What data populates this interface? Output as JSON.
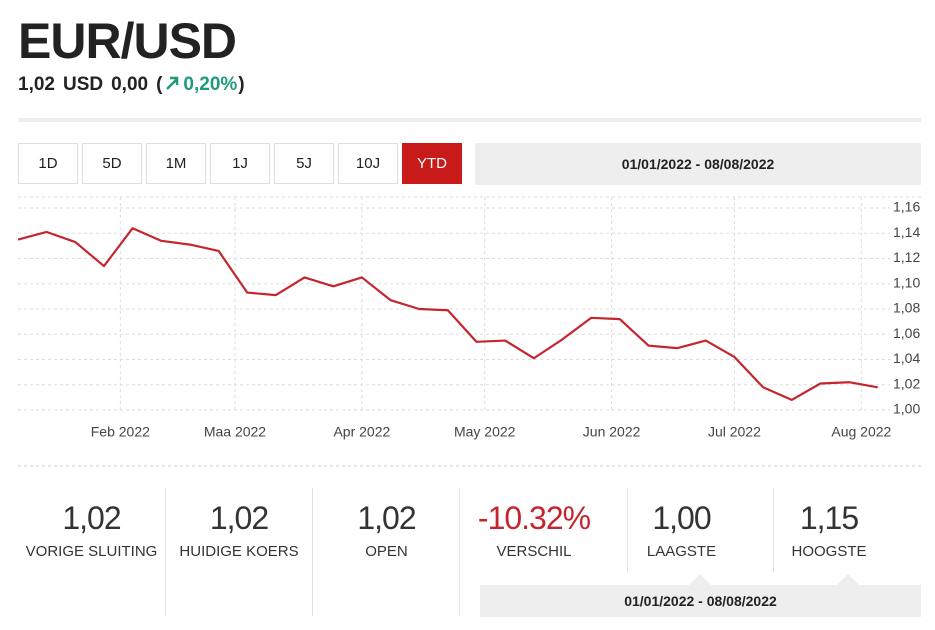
{
  "header": {
    "title": "EUR/USD",
    "price": "1,02",
    "currency": "USD",
    "change": "0,00",
    "paren_open": "(",
    "change_pct": "0,20%",
    "paren_close": ")"
  },
  "tabs": [
    "1D",
    "5D",
    "1M",
    "1J",
    "5J",
    "10J",
    "YTD"
  ],
  "active_tab": 6,
  "date_range": "01/01/2022 - 08/08/2022",
  "chart_data": {
    "type": "line",
    "color": "#c4262e",
    "grid": true,
    "x": [
      6,
      13,
      20,
      27,
      34,
      41,
      48,
      55,
      62,
      69,
      76,
      83,
      90,
      97,
      104,
      111,
      118,
      125,
      132,
      139,
      146,
      153,
      160,
      167,
      174,
      181,
      188,
      195,
      202,
      209,
      216
    ],
    "values": [
      1.135,
      1.141,
      1.133,
      1.114,
      1.144,
      1.134,
      1.131,
      1.126,
      1.093,
      1.091,
      1.105,
      1.098,
      1.105,
      1.087,
      1.08,
      1.079,
      1.054,
      1.055,
      1.041,
      1.056,
      1.073,
      1.072,
      1.051,
      1.049,
      1.055,
      1.042,
      1.018,
      1.008,
      1.021,
      1.022,
      1.018
    ],
    "xlim": [
      6,
      219
    ],
    "ylim": [
      1.0,
      1.16
    ],
    "xticks": [
      {
        "value": 31,
        "label": "Feb 2022"
      },
      {
        "value": 59,
        "label": "Maa 2022"
      },
      {
        "value": 90,
        "label": "Apr 2022"
      },
      {
        "value": 120,
        "label": "May 2022"
      },
      {
        "value": 151,
        "label": "Jun 2022"
      },
      {
        "value": 181,
        "label": "Jul 2022"
      },
      {
        "value": 212,
        "label": "Aug 2022"
      }
    ],
    "yticks": [
      {
        "value": 1.0,
        "label": "1,00"
      },
      {
        "value": 1.02,
        "label": "1,02"
      },
      {
        "value": 1.04,
        "label": "1,04"
      },
      {
        "value": 1.06,
        "label": "1,06"
      },
      {
        "value": 1.08,
        "label": "1,08"
      },
      {
        "value": 1.1,
        "label": "1,10"
      },
      {
        "value": 1.12,
        "label": "1,12"
      },
      {
        "value": 1.14,
        "label": "1,14"
      },
      {
        "value": 1.16,
        "label": "1,16"
      }
    ]
  },
  "stats": [
    {
      "value": "1,02",
      "label": "VORIGE SLUITING"
    },
    {
      "value": "1,02",
      "label": "HUIDIGE KOERS"
    },
    {
      "value": "1,02",
      "label": "OPEN"
    },
    {
      "value": "-10.32%",
      "label": "VERSCHIL"
    },
    {
      "value": "1,00",
      "label": "LAAGSTE"
    },
    {
      "value": "1,15",
      "label": "HOOGSTE"
    }
  ],
  "stats_range": "01/01/2022 - 08/08/2022"
}
